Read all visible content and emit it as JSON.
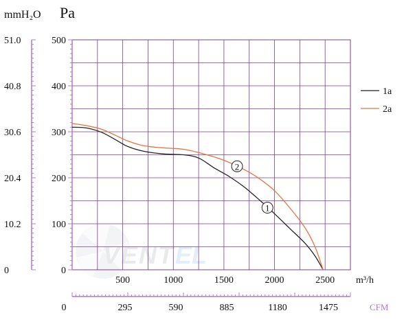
{
  "chart_data": {
    "type": "line",
    "units": {
      "left_outer": "mmH₂O",
      "left_inner": "Pa",
      "x_bottom": "m³/h",
      "x_secondary": "CFM"
    },
    "mmh2o_ticks": [
      "51.0",
      "40.8",
      "30.6",
      "20.4",
      "10.2",
      "0"
    ],
    "pa_ticks": [
      "500",
      "400",
      "300",
      "200",
      "100",
      "0"
    ],
    "x_ticks": [
      "500",
      "1000",
      "1500",
      "2000",
      "2500"
    ],
    "cfm_ticks": [
      "0",
      "295",
      "590",
      "885",
      "1180",
      "1475"
    ],
    "xlim": [
      0,
      2750
    ],
    "ylim": [
      0,
      500
    ],
    "grid": true,
    "legend_position": "right",
    "series": [
      {
        "name": "1a",
        "color": "#222222",
        "marker": "1",
        "marker_at": [
          1930,
          135
        ],
        "points": [
          [
            0,
            310
          ],
          [
            150,
            308
          ],
          [
            300,
            298
          ],
          [
            450,
            280
          ],
          [
            550,
            268
          ],
          [
            700,
            258
          ],
          [
            900,
            252
          ],
          [
            1100,
            250
          ],
          [
            1250,
            243
          ],
          [
            1400,
            222
          ],
          [
            1550,
            203
          ],
          [
            1700,
            180
          ],
          [
            1850,
            152
          ],
          [
            2000,
            122
          ],
          [
            2150,
            90
          ],
          [
            2300,
            58
          ],
          [
            2400,
            30
          ],
          [
            2480,
            0
          ]
        ]
      },
      {
        "name": "2a",
        "color": "#e8723a",
        "marker": "2",
        "marker_at": [
          1630,
          225
        ],
        "points": [
          [
            0,
            318
          ],
          [
            150,
            313
          ],
          [
            300,
            305
          ],
          [
            450,
            290
          ],
          [
            550,
            280
          ],
          [
            700,
            270
          ],
          [
            900,
            265
          ],
          [
            1100,
            262
          ],
          [
            1300,
            252
          ],
          [
            1500,
            238
          ],
          [
            1700,
            218
          ],
          [
            1850,
            198
          ],
          [
            2000,
            172
          ],
          [
            2150,
            135
          ],
          [
            2300,
            92
          ],
          [
            2400,
            50
          ],
          [
            2480,
            0
          ]
        ]
      }
    ]
  }
}
